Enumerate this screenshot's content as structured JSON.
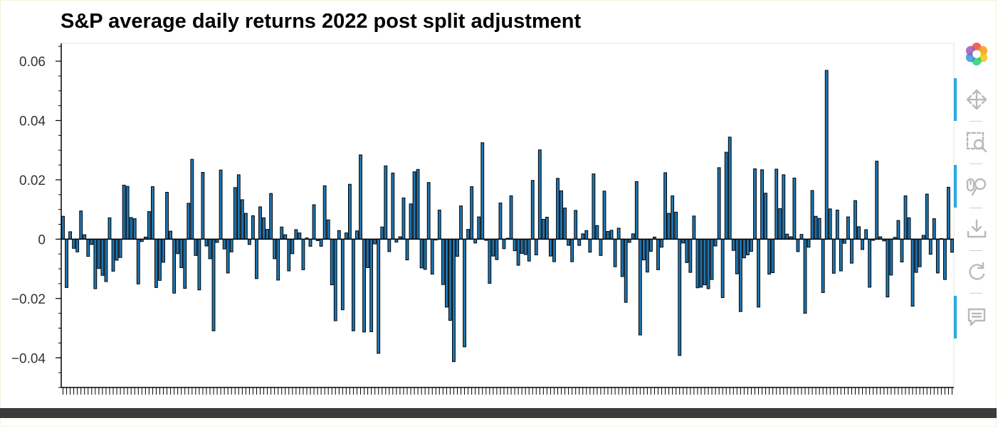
{
  "chart_data": {
    "type": "bar",
    "title": "S&P average daily returns 2022 post split adjustment",
    "xlabel": "",
    "ylabel": "",
    "ylim": [
      -0.05,
      0.066
    ],
    "yticks": [
      -0.04,
      -0.02,
      0,
      0.02,
      0.04,
      0.06
    ],
    "ytick_labels": [
      "−0.04",
      "−0.02",
      "0",
      "0.02",
      "0.04",
      "0.06"
    ],
    "grid": false,
    "bar_color": "#1f77b4",
    "values": [
      0.0077,
      -0.0163,
      0.0025,
      -0.0031,
      -0.0043,
      0.0095,
      0.0015,
      -0.0058,
      -0.0018,
      -0.0167,
      -0.0099,
      -0.0122,
      -0.0143,
      0.0072,
      -0.0108,
      -0.0071,
      -0.0062,
      0.0182,
      0.0178,
      0.0073,
      0.0069,
      -0.0151,
      -0.0008,
      0.0007,
      0.0093,
      0.0177,
      -0.0163,
      -0.0139,
      -0.0078,
      0.0158,
      0.0027,
      -0.0182,
      -0.0049,
      -0.0096,
      -0.0166,
      0.0121,
      0.0269,
      -0.0055,
      -0.0171,
      0.0225,
      -0.0023,
      -0.0066,
      -0.0309,
      -0.0011,
      0.0233,
      -0.0033,
      -0.0114,
      -0.0043,
      0.0174,
      0.0217,
      0.0133,
      0.0087,
      -0.0018,
      0.0079,
      -0.0133,
      0.0109,
      0.0072,
      0.0033,
      0.0154,
      -0.0066,
      -0.0138,
      0.0041,
      0.0015,
      -0.0107,
      -0.0049,
      0.0032,
      0.0021,
      -0.0103,
      0.0004,
      -0.0024,
      0.0116,
      -0.0005,
      -0.0024,
      0.018,
      0.0065,
      -0.0154,
      -0.0275,
      0.0029,
      -0.0238,
      0.0021,
      0.0185,
      -0.0309,
      0.0028,
      0.0284,
      -0.0313,
      -0.0096,
      -0.0312,
      -0.0016,
      -0.0385,
      0.0041,
      0.0247,
      -0.0042,
      0.0223,
      -0.001,
      0.0008,
      0.0139,
      -0.007,
      0.0119,
      0.0227,
      0.0235,
      -0.0097,
      -0.0102,
      0.0191,
      -0.0118,
      -0.0003,
      0.0098,
      -0.0153,
      -0.0229,
      -0.0274,
      -0.0413,
      -0.0058,
      0.0112,
      -0.0363,
      0.0033,
      0.0177,
      -0.0013,
      0.0075,
      0.0325,
      -0.0004,
      -0.0149,
      -0.0057,
      -0.0069,
      0.0122,
      -0.0032,
      0.0003,
      0.0146,
      -0.0039,
      -0.0088,
      -0.0048,
      -0.0052,
      -0.0074,
      0.0198,
      -0.0053,
      0.0301,
      0.0067,
      0.0074,
      -0.0057,
      -0.0076,
      0.0205,
      0.0163,
      0.0105,
      -0.0021,
      -0.0076,
      0.0097,
      -0.0021,
      0.0018,
      0.0029,
      -0.0044,
      0.022,
      0.0046,
      -0.0055,
      0.0162,
      0.0026,
      0.003,
      -0.0093,
      0.0037,
      -0.0126,
      -0.0213,
      -0.0011,
      0.0018,
      0.0194,
      -0.0323,
      -0.007,
      -0.0111,
      -0.0041,
      0.0007,
      -0.0103,
      -0.0027,
      0.0224,
      0.0087,
      0.0146,
      0.0091,
      -0.0392,
      -0.0013,
      -0.0079,
      -0.0112,
      0.0078,
      -0.0164,
      -0.0162,
      -0.0154,
      -0.0167,
      -0.0136,
      -0.0023,
      0.0241,
      -0.0197,
      0.0293,
      0.0344,
      -0.0038,
      -0.0117,
      -0.0244,
      -0.0063,
      -0.0053,
      -0.0041,
      0.0237,
      -0.0229,
      0.0234,
      0.0155,
      -0.0118,
      -0.0113,
      0.0236,
      0.0103,
      0.0217,
      0.0017,
      0.0008,
      0.0206,
      -0.0042,
      0.0016,
      -0.025,
      -0.0027,
      0.0164,
      0.0077,
      0.007,
      -0.018,
      0.0569,
      0.0102,
      -0.0115,
      0.0098,
      -0.0107,
      -0.0014,
      0.0075,
      -0.0081,
      0.013,
      0.0042,
      -0.0035,
      0.0032,
      -0.0162,
      -0.0004,
      0.0263,
      0.0008,
      -0.0006,
      -0.0195,
      -0.0121,
      0.0006,
      0.0063,
      -0.0077,
      0.0146,
      0.0072,
      -0.0226,
      -0.0112,
      -0.0093,
      0.0013,
      0.0152,
      -0.0051,
      0.0069,
      -0.0114,
      0.0002,
      -0.0136,
      0.0175,
      -0.0044
    ]
  },
  "toolbar": {
    "logo_icon": "bokeh-logo-icon",
    "tools": [
      {
        "icon": "pan-icon",
        "active": true
      },
      {
        "icon": "box-zoom-icon",
        "active": false
      },
      {
        "icon": "wheel-zoom-icon",
        "active": true
      },
      {
        "icon": "save-icon",
        "active": false
      },
      {
        "icon": "reset-icon",
        "active": false
      },
      {
        "icon": "hover-icon",
        "active": true
      }
    ],
    "active_color": "#26aae1",
    "icon_color": "#b9b9b9"
  }
}
